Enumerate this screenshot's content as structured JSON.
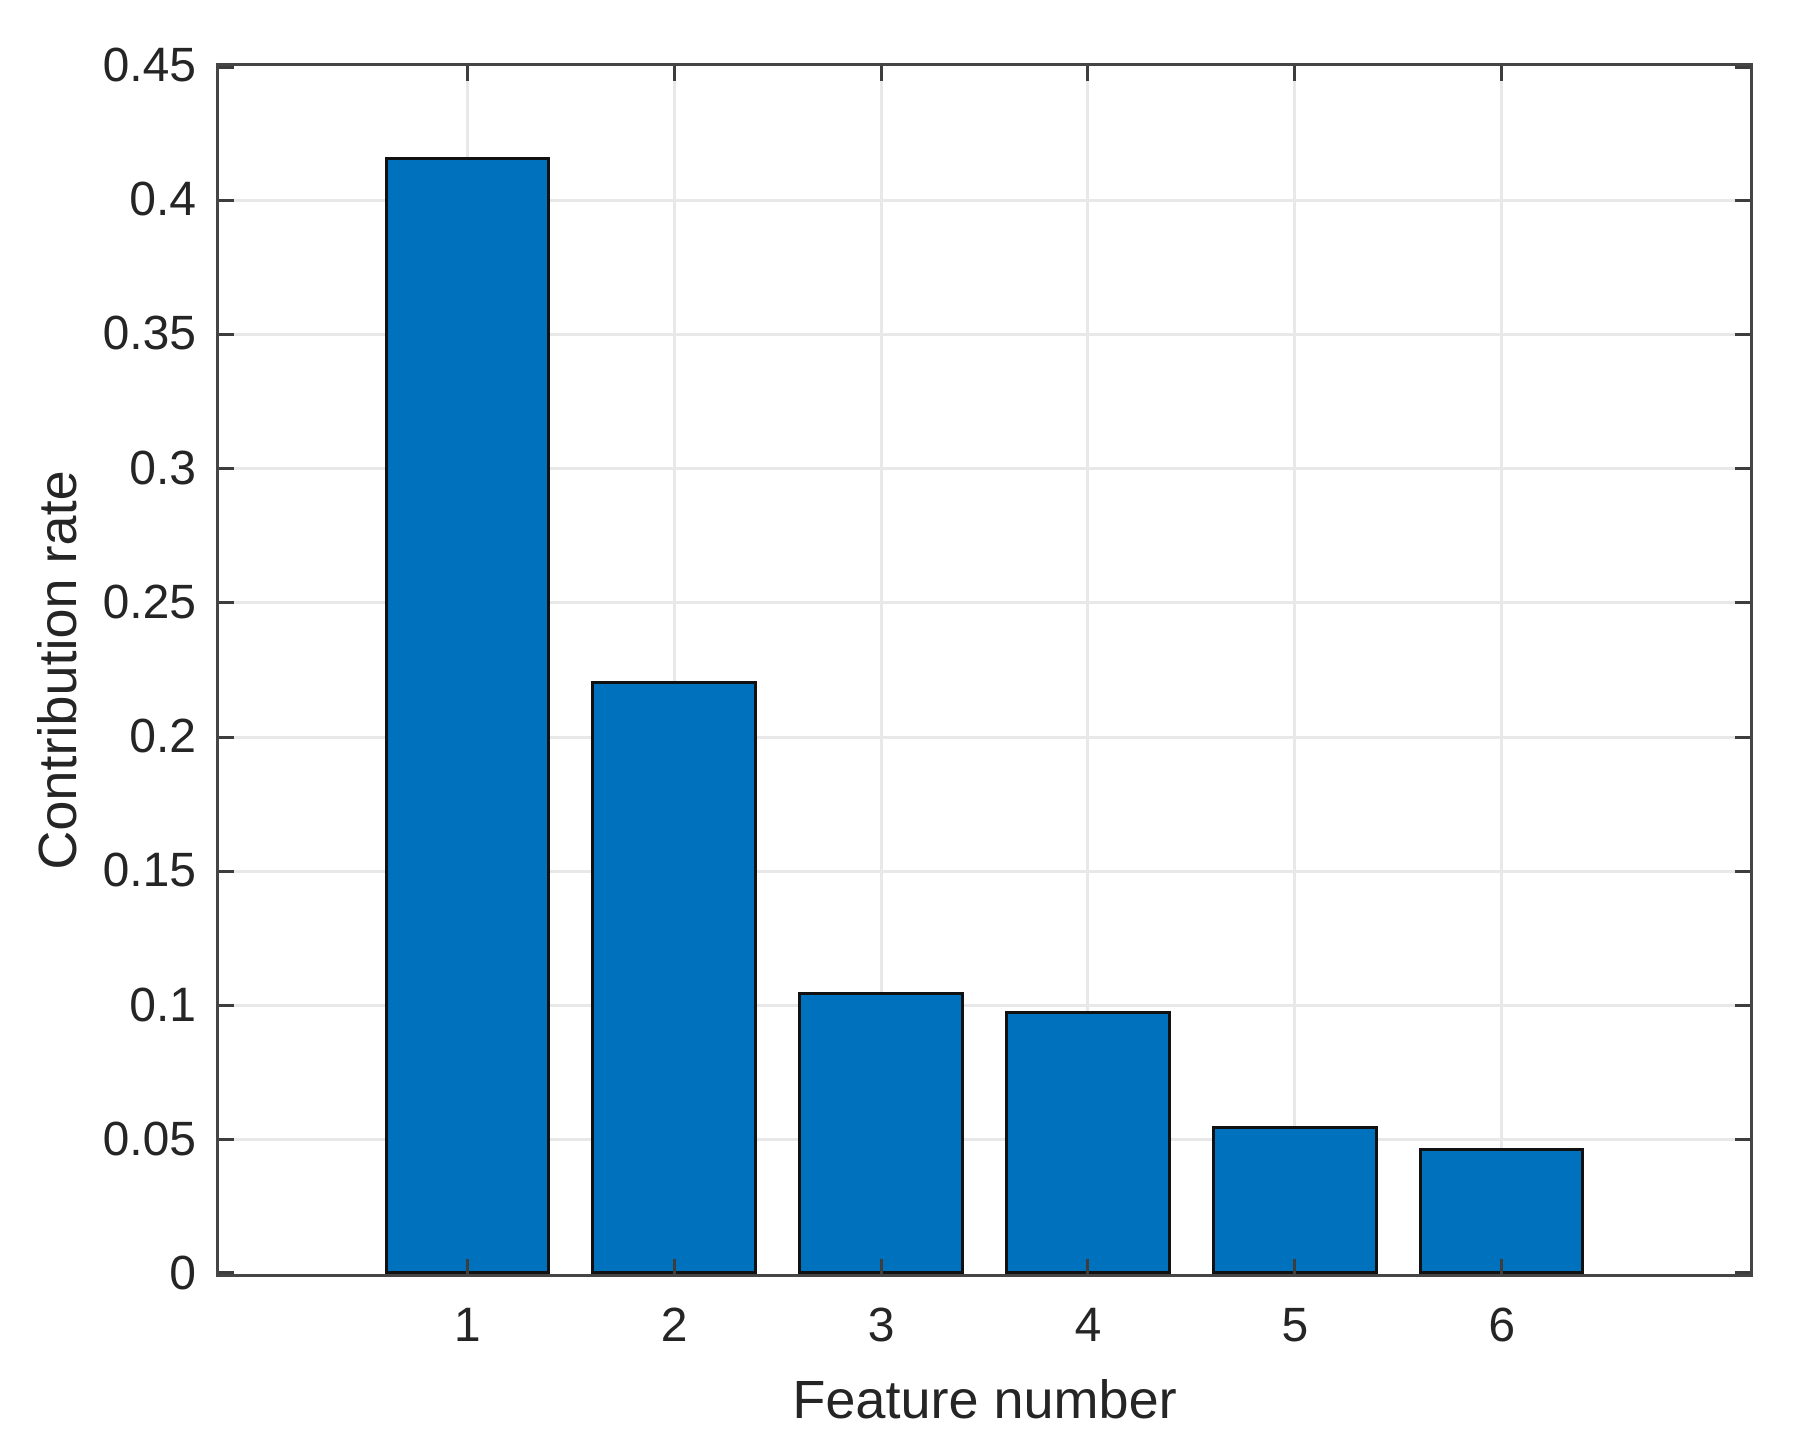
{
  "chart_data": {
    "type": "bar",
    "xlabel": "Feature number",
    "ylabel": "Contribution rate",
    "categories": [
      "1",
      "2",
      "3",
      "4",
      "5",
      "6"
    ],
    "values": [
      0.416,
      0.221,
      0.105,
      0.098,
      0.055,
      0.047
    ],
    "xtick_labels": [
      "1",
      "2",
      "3",
      "4",
      "5",
      "6"
    ],
    "yticks": [
      0,
      0.05,
      0.1,
      0.15,
      0.2,
      0.25,
      0.3,
      0.35,
      0.4,
      0.45
    ],
    "ytick_labels": [
      "0",
      "0.05",
      "0.1",
      "0.15",
      "0.2",
      "0.25",
      "0.3",
      "0.35",
      "0.4",
      "0.45"
    ],
    "ylim": [
      0,
      0.45
    ],
    "xlim": [
      -0.2,
      7.2
    ],
    "bar_width_fraction": 0.8,
    "grid": true,
    "legend": false,
    "box": true,
    "tick_direction": "in",
    "colors": {
      "bar_fill": "#0072BD",
      "bar_edge": "#111111",
      "grid_line": "#e8e8e8",
      "axis_line": "#454545",
      "tick_mark": "#3d3d3d",
      "text": "#252525",
      "background": "#ffffff"
    }
  }
}
